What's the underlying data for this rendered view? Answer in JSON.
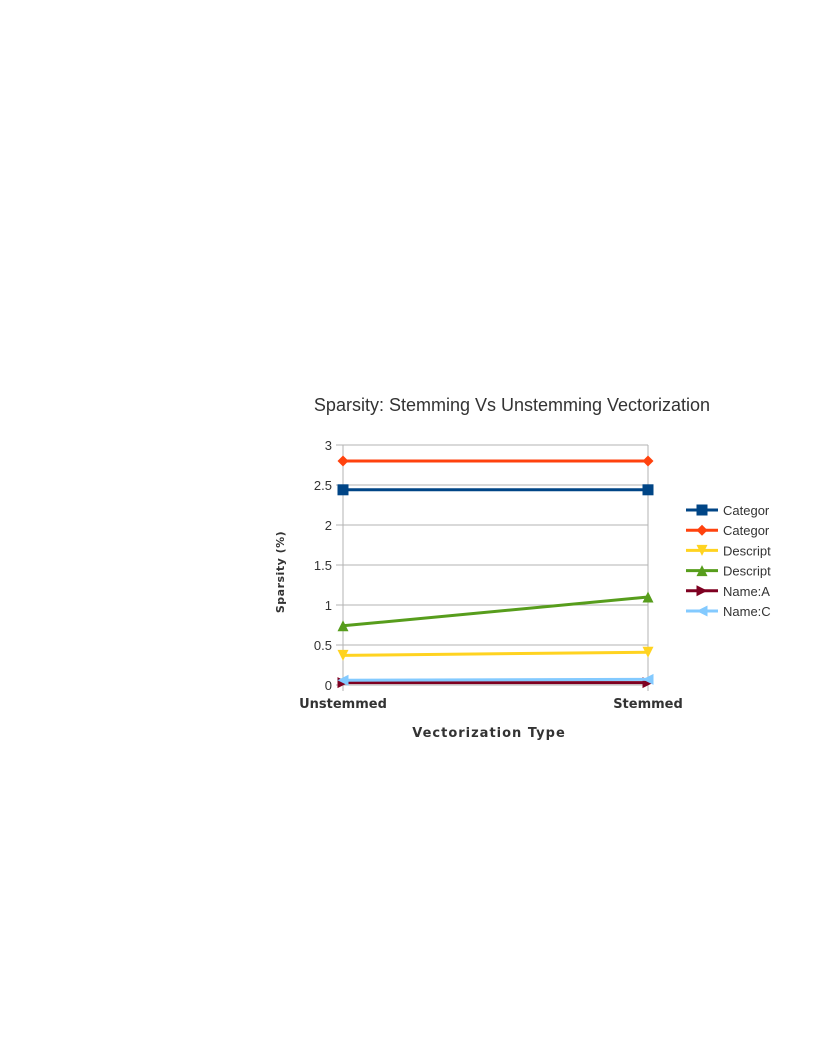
{
  "chart_data": {
    "type": "line",
    "title": "Sparsity: Stemming Vs Unstemming Vectorization",
    "xlabel": "Vectorization Type",
    "ylabel": "Sparsity (%)",
    "categories": [
      "Unstemmed",
      "Stemmed"
    ],
    "ylim": [
      0,
      3
    ],
    "yticks": [
      "0",
      "0.5",
      "1",
      "1.5",
      "2",
      "2.5",
      "3"
    ],
    "grid": true,
    "legend_position": "right",
    "series": [
      {
        "name": "Categor",
        "color": "#004586",
        "marker": "square",
        "values": [
          2.44,
          2.44
        ]
      },
      {
        "name": "Categor",
        "color": "#ff420e",
        "marker": "diamond",
        "values": [
          2.8,
          2.8
        ]
      },
      {
        "name": "Descript",
        "color": "#ffd320",
        "marker": "triangle-down",
        "values": [
          0.37,
          0.41
        ]
      },
      {
        "name": "Descript",
        "color": "#579d1c",
        "marker": "triangle-up",
        "values": [
          0.74,
          1.1
        ]
      },
      {
        "name": "Name:A",
        "color": "#7e0021",
        "marker": "triangle-right",
        "values": [
          0.03,
          0.03
        ]
      },
      {
        "name": "Name:C",
        "color": "#83caff",
        "marker": "triangle-left",
        "values": [
          0.06,
          0.07
        ]
      }
    ]
  }
}
